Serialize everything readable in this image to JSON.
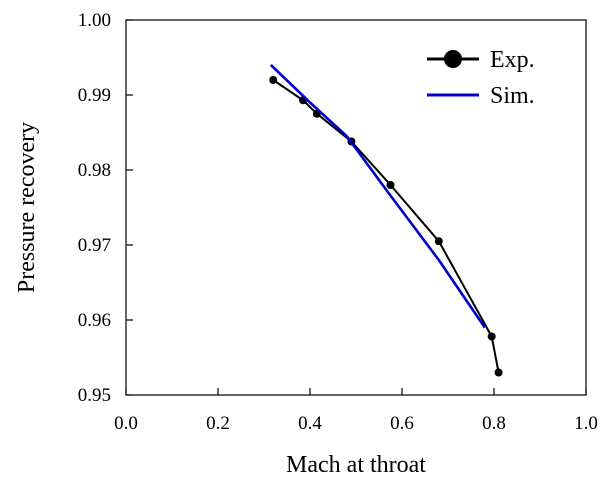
{
  "chart_data": {
    "type": "line",
    "xlabel": "Mach at throat",
    "ylabel": "Pressure recovery",
    "xlim": [
      0.0,
      1.0
    ],
    "ylim": [
      0.95,
      1.0
    ],
    "x_ticks": [
      "0.0",
      "0.2",
      "0.4",
      "0.6",
      "0.8",
      "1.0"
    ],
    "y_ticks": [
      "0.95",
      "0.96",
      "0.97",
      "0.98",
      "0.99",
      "1.00"
    ],
    "legend_position": "top-right",
    "series": [
      {
        "name": "Exp.",
        "color": "#000000",
        "marker": "circle",
        "x": [
          0.32,
          0.385,
          0.415,
          0.49,
          0.575,
          0.68,
          0.795,
          0.81
        ],
        "y": [
          0.992,
          0.9893,
          0.9875,
          0.9838,
          0.978,
          0.9705,
          0.9578,
          0.953
        ]
      },
      {
        "name": "Sim.",
        "color": "#0000cc",
        "marker": "none",
        "x": [
          0.315,
          0.4,
          0.48,
          0.57,
          0.68,
          0.78
        ],
        "y": [
          0.994,
          0.989,
          0.9845,
          0.977,
          0.968,
          0.959
        ]
      }
    ]
  }
}
